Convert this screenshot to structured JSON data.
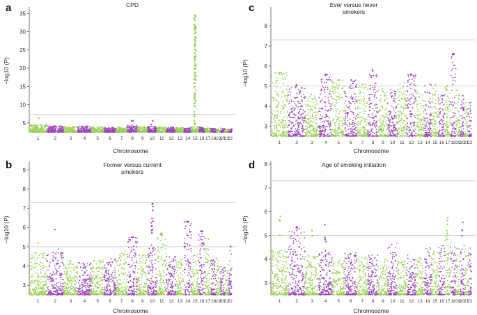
{
  "figure": {
    "colors": {
      "odd": "#9bcf55",
      "even": "#9848b8",
      "threshold": "#c9c9c9",
      "axis": "#555555"
    },
    "chromosome_axis_label": "Chromosome",
    "y_axis_label": "−log10 (P)"
  },
  "chart_data": [
    {
      "panel": "a",
      "type": "scatter",
      "title": "CPD",
      "xlabel": "Chromosome",
      "ylabel": "−log10 (P)",
      "ylim": [
        2.5,
        36
      ],
      "yticks": [
        5,
        10,
        15,
        20,
        25,
        30,
        35
      ],
      "thresholds": [
        7.3
      ],
      "chromosomes": [
        "1",
        "2",
        "3",
        "4",
        "5",
        "6",
        "7",
        "8",
        "9",
        "10",
        "11",
        "12",
        "13",
        "14",
        "15",
        "16",
        "17",
        "18",
        "19",
        "20",
        "21",
        "22"
      ],
      "background_max_by_chromosome": [
        4.6,
        4.2,
        4.0,
        4.2,
        4.0,
        3.8,
        3.9,
        4.4,
        4.2,
        4.1,
        4.0,
        3.9,
        3.8,
        3.8,
        4.0,
        4.0,
        3.7,
        3.6,
        3.4,
        3.6,
        3.3,
        3.4
      ],
      "notable_points": [
        {
          "chr": "1",
          "p": 6.3,
          "count": 1
        },
        {
          "chr": "8",
          "p": 5.6,
          "count": 2
        },
        {
          "chr": "10",
          "p": 5.6,
          "count": 2
        },
        {
          "chr": "15",
          "p": 34.5,
          "count": 90
        }
      ]
    },
    {
      "panel": "b",
      "type": "scatter",
      "title": "Former versus current smokers",
      "xlabel": "Chromosome",
      "ylabel": "−log10 (P)",
      "ylim": [
        2.5,
        9.3
      ],
      "yticks": [
        3,
        4,
        5,
        6,
        7,
        8,
        9
      ],
      "thresholds": [
        7.3,
        5.0
      ],
      "chromosomes": [
        "1",
        "2",
        "3",
        "4",
        "5",
        "6",
        "7",
        "8",
        "9",
        "10",
        "11",
        "12",
        "13",
        "14",
        "15",
        "16",
        "17",
        "18",
        "19",
        "20",
        "21",
        "22"
      ],
      "background_max_by_chromosome": [
        4.7,
        4.9,
        4.3,
        4.3,
        4.4,
        4.4,
        4.8,
        5.5,
        4.6,
        5.2,
        5.6,
        4.5,
        4.4,
        6.3,
        4.6,
        5.8,
        5.0,
        4.4,
        4.3,
        4.1,
        4.2,
        4.9
      ],
      "notable_points": [
        {
          "chr": "1",
          "p": 5.2,
          "count": 1
        },
        {
          "chr": "2",
          "p": 5.9,
          "count": 1
        },
        {
          "chr": "8",
          "p": 5.5,
          "count": 6
        },
        {
          "chr": "10",
          "p": 7.25,
          "count": 12
        },
        {
          "chr": "11",
          "p": 5.7,
          "count": 6
        },
        {
          "chr": "14",
          "p": 6.3,
          "count": 14
        },
        {
          "chr": "16",
          "p": 5.8,
          "count": 10
        },
        {
          "chr": "17",
          "p": 5.4,
          "count": 1
        },
        {
          "chr": "22",
          "p": 5.0,
          "count": 1
        }
      ]
    },
    {
      "panel": "c",
      "type": "scatter",
      "title": "Ever versus never smokers",
      "xlabel": "Chromosome",
      "ylabel": "−log10 (P)",
      "ylim": [
        2.5,
        8.8
      ],
      "yticks": [
        3,
        4,
        5,
        6,
        7,
        8
      ],
      "thresholds": [
        7.3,
        5.0
      ],
      "chromosomes": [
        "1",
        "2",
        "3",
        "4",
        "5",
        "6",
        "7",
        "8",
        "9",
        "10",
        "11",
        "12",
        "13",
        "14",
        "15",
        "16",
        "17",
        "18",
        "19",
        "20",
        "21",
        "22"
      ],
      "background_max_by_chromosome": [
        5.7,
        5.0,
        4.6,
        5.6,
        5.3,
        5.3,
        5.1,
        5.8,
        4.9,
        4.9,
        5.2,
        5.6,
        4.8,
        5.1,
        4.9,
        4.6,
        5.0,
        6.6,
        4.9,
        4.6,
        4.2,
        4.5
      ],
      "notable_points": [
        {
          "chr": "1",
          "p": 5.65,
          "count": 3
        },
        {
          "chr": "2",
          "p": 5.05,
          "count": 2
        },
        {
          "chr": "4",
          "p": 5.55,
          "count": 4
        },
        {
          "chr": "5",
          "p": 5.3,
          "count": 2
        },
        {
          "chr": "6",
          "p": 5.3,
          "count": 1
        },
        {
          "chr": "8",
          "p": 5.8,
          "count": 2
        },
        {
          "chr": "12",
          "p": 5.55,
          "count": 3
        },
        {
          "chr": "15",
          "p": 5.05,
          "count": 1
        },
        {
          "chr": "17",
          "p": 5.0,
          "count": 1
        },
        {
          "chr": "18",
          "p": 6.6,
          "count": 14
        }
      ]
    },
    {
      "panel": "d",
      "type": "scatter",
      "title": "Age of smoking initiation",
      "xlabel": "Chromosome",
      "ylabel": "−log10 (P)",
      "ylim": [
        2.5,
        8.0
      ],
      "yticks": [
        3,
        4,
        5,
        6,
        7,
        8
      ],
      "thresholds": [
        7.3,
        5.0
      ],
      "chromosomes": [
        "1",
        "2",
        "3",
        "4",
        "5",
        "6",
        "7",
        "8",
        "9",
        "10",
        "11",
        "12",
        "13",
        "14",
        "15",
        "16",
        "17",
        "18",
        "19",
        "20",
        "21",
        "22"
      ],
      "background_max_by_chromosome": [
        4.4,
        5.3,
        4.2,
        4.3,
        4.0,
        4.3,
        4.1,
        4.2,
        4.0,
        4.7,
        4.0,
        4.2,
        4.1,
        4.5,
        4.4,
        4.6,
        5.0,
        4.6,
        4.5,
        4.7,
        4.4,
        4.5
      ],
      "notable_points": [
        {
          "chr": "1",
          "p": 5.8,
          "count": 4
        },
        {
          "chr": "2",
          "p": 5.35,
          "count": 6
        },
        {
          "chr": "3",
          "p": 5.2,
          "count": 2
        },
        {
          "chr": "4",
          "p": 5.45,
          "count": 5
        },
        {
          "chr": "17",
          "p": 5.75,
          "count": 5
        },
        {
          "chr": "20",
          "p": 5.55,
          "count": 3
        }
      ]
    }
  ]
}
